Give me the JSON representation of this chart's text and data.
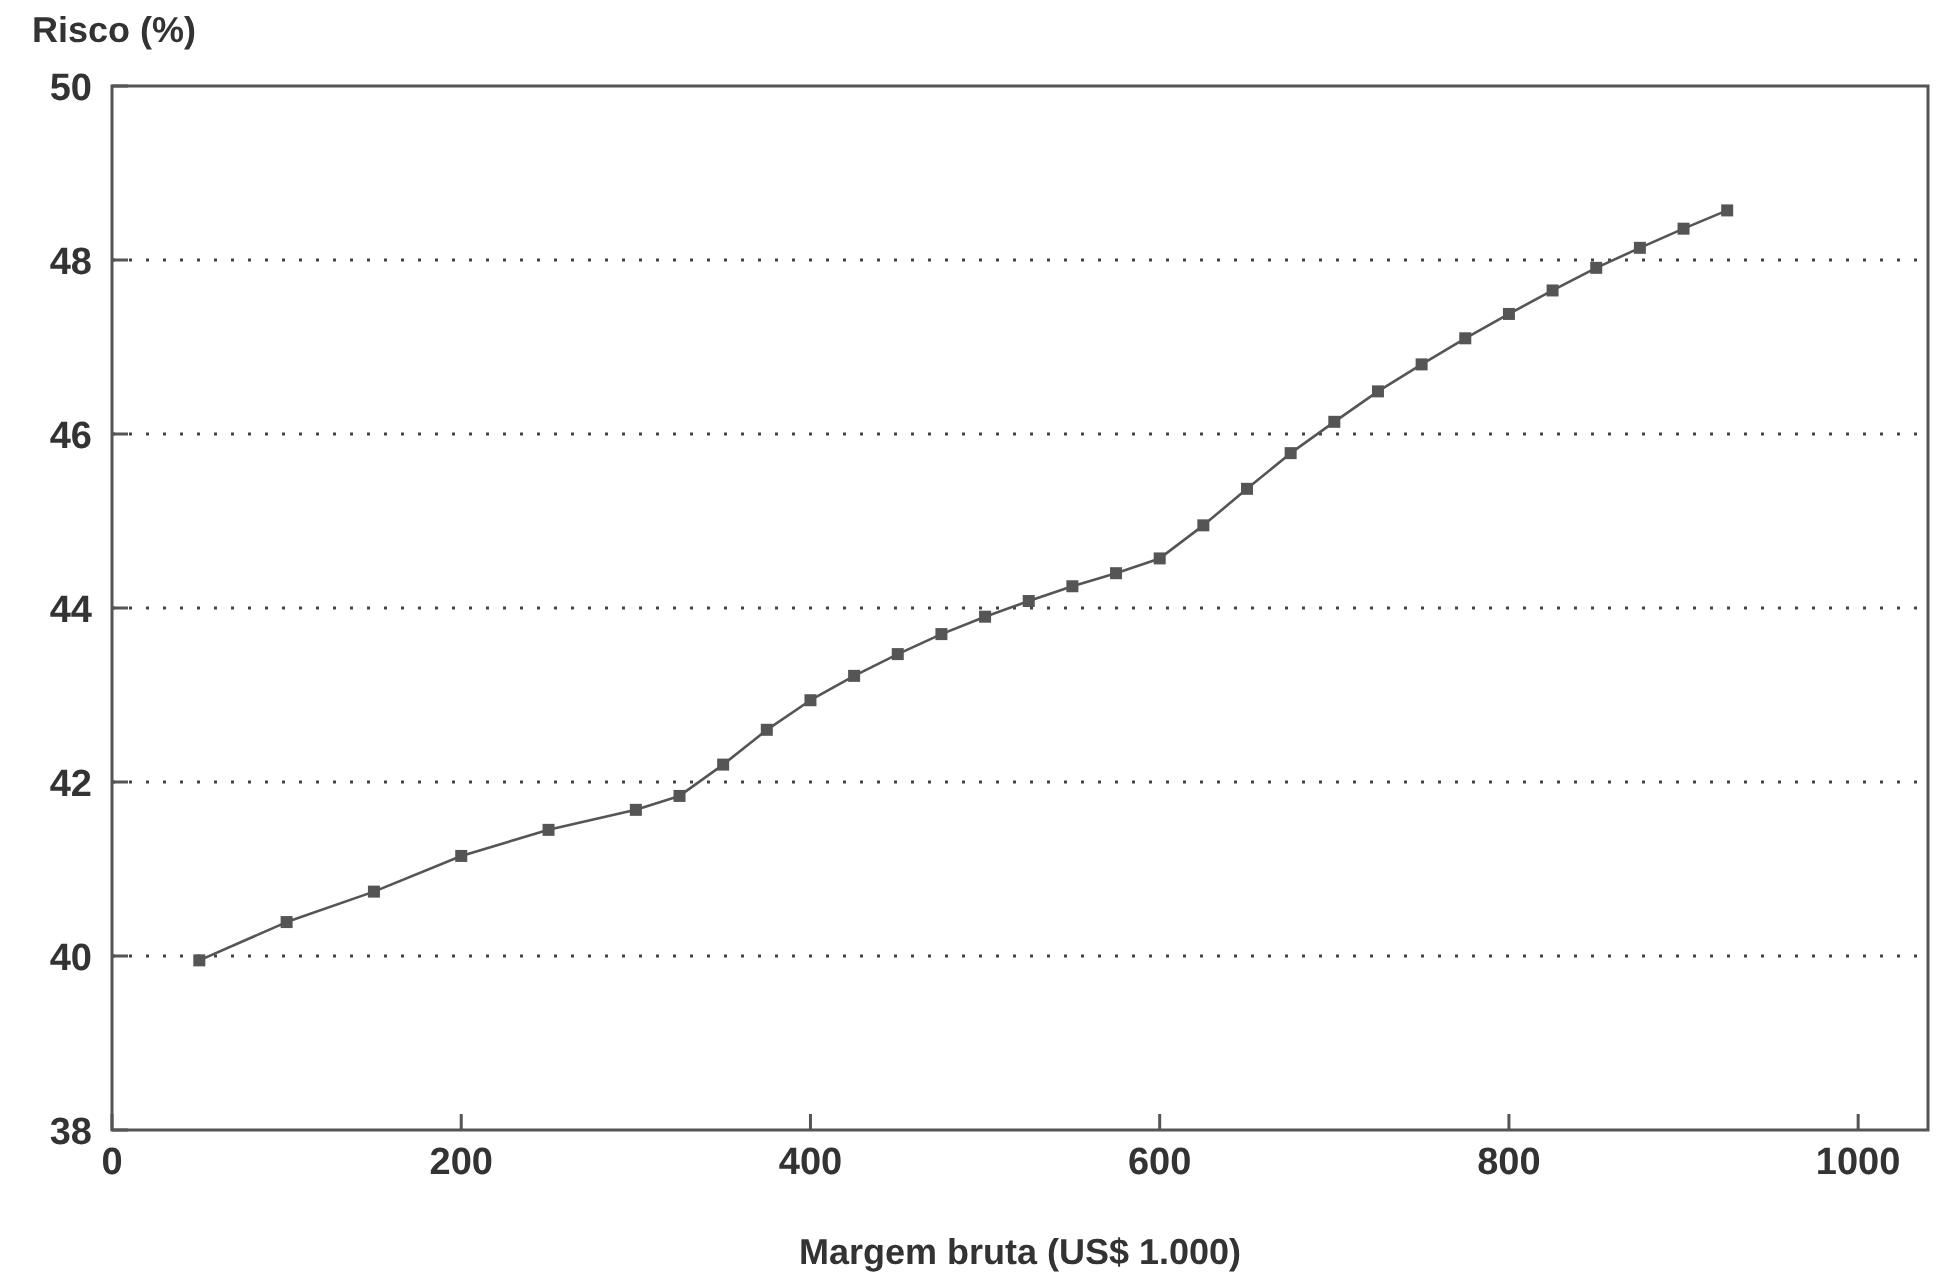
{
  "chart_data": {
    "type": "line",
    "xlabel": "Margem bruta (US$ 1.000)",
    "ylabel": "Risco (%)",
    "x": [
      50,
      100,
      150,
      200,
      250,
      300,
      325,
      350,
      375,
      400,
      425,
      450,
      475,
      500,
      525,
      550,
      575,
      600,
      625,
      650,
      675,
      700,
      725,
      750,
      775,
      800,
      825,
      850,
      875,
      900,
      925
    ],
    "series": [
      {
        "color": "#555555",
        "values": [
          39.95,
          40.39,
          40.74,
          41.15,
          41.45,
          41.68,
          41.84,
          42.2,
          42.6,
          42.94,
          43.22,
          43.47,
          43.7,
          43.9,
          44.08,
          44.25,
          44.4,
          44.57,
          44.95,
          45.37,
          45.78,
          46.14,
          46.49,
          46.8,
          47.1,
          47.38,
          47.65,
          47.91,
          48.14,
          48.36,
          48.57
        ]
      }
    ],
    "xlim": [
      0,
      1040
    ],
    "ylim": [
      38,
      50
    ],
    "xticks": [
      0,
      200,
      400,
      600,
      800,
      1000
    ],
    "yticks": [
      38,
      40,
      42,
      44,
      46,
      48,
      50
    ],
    "grid": "y",
    "marker": "square",
    "line_style": "solid"
  }
}
